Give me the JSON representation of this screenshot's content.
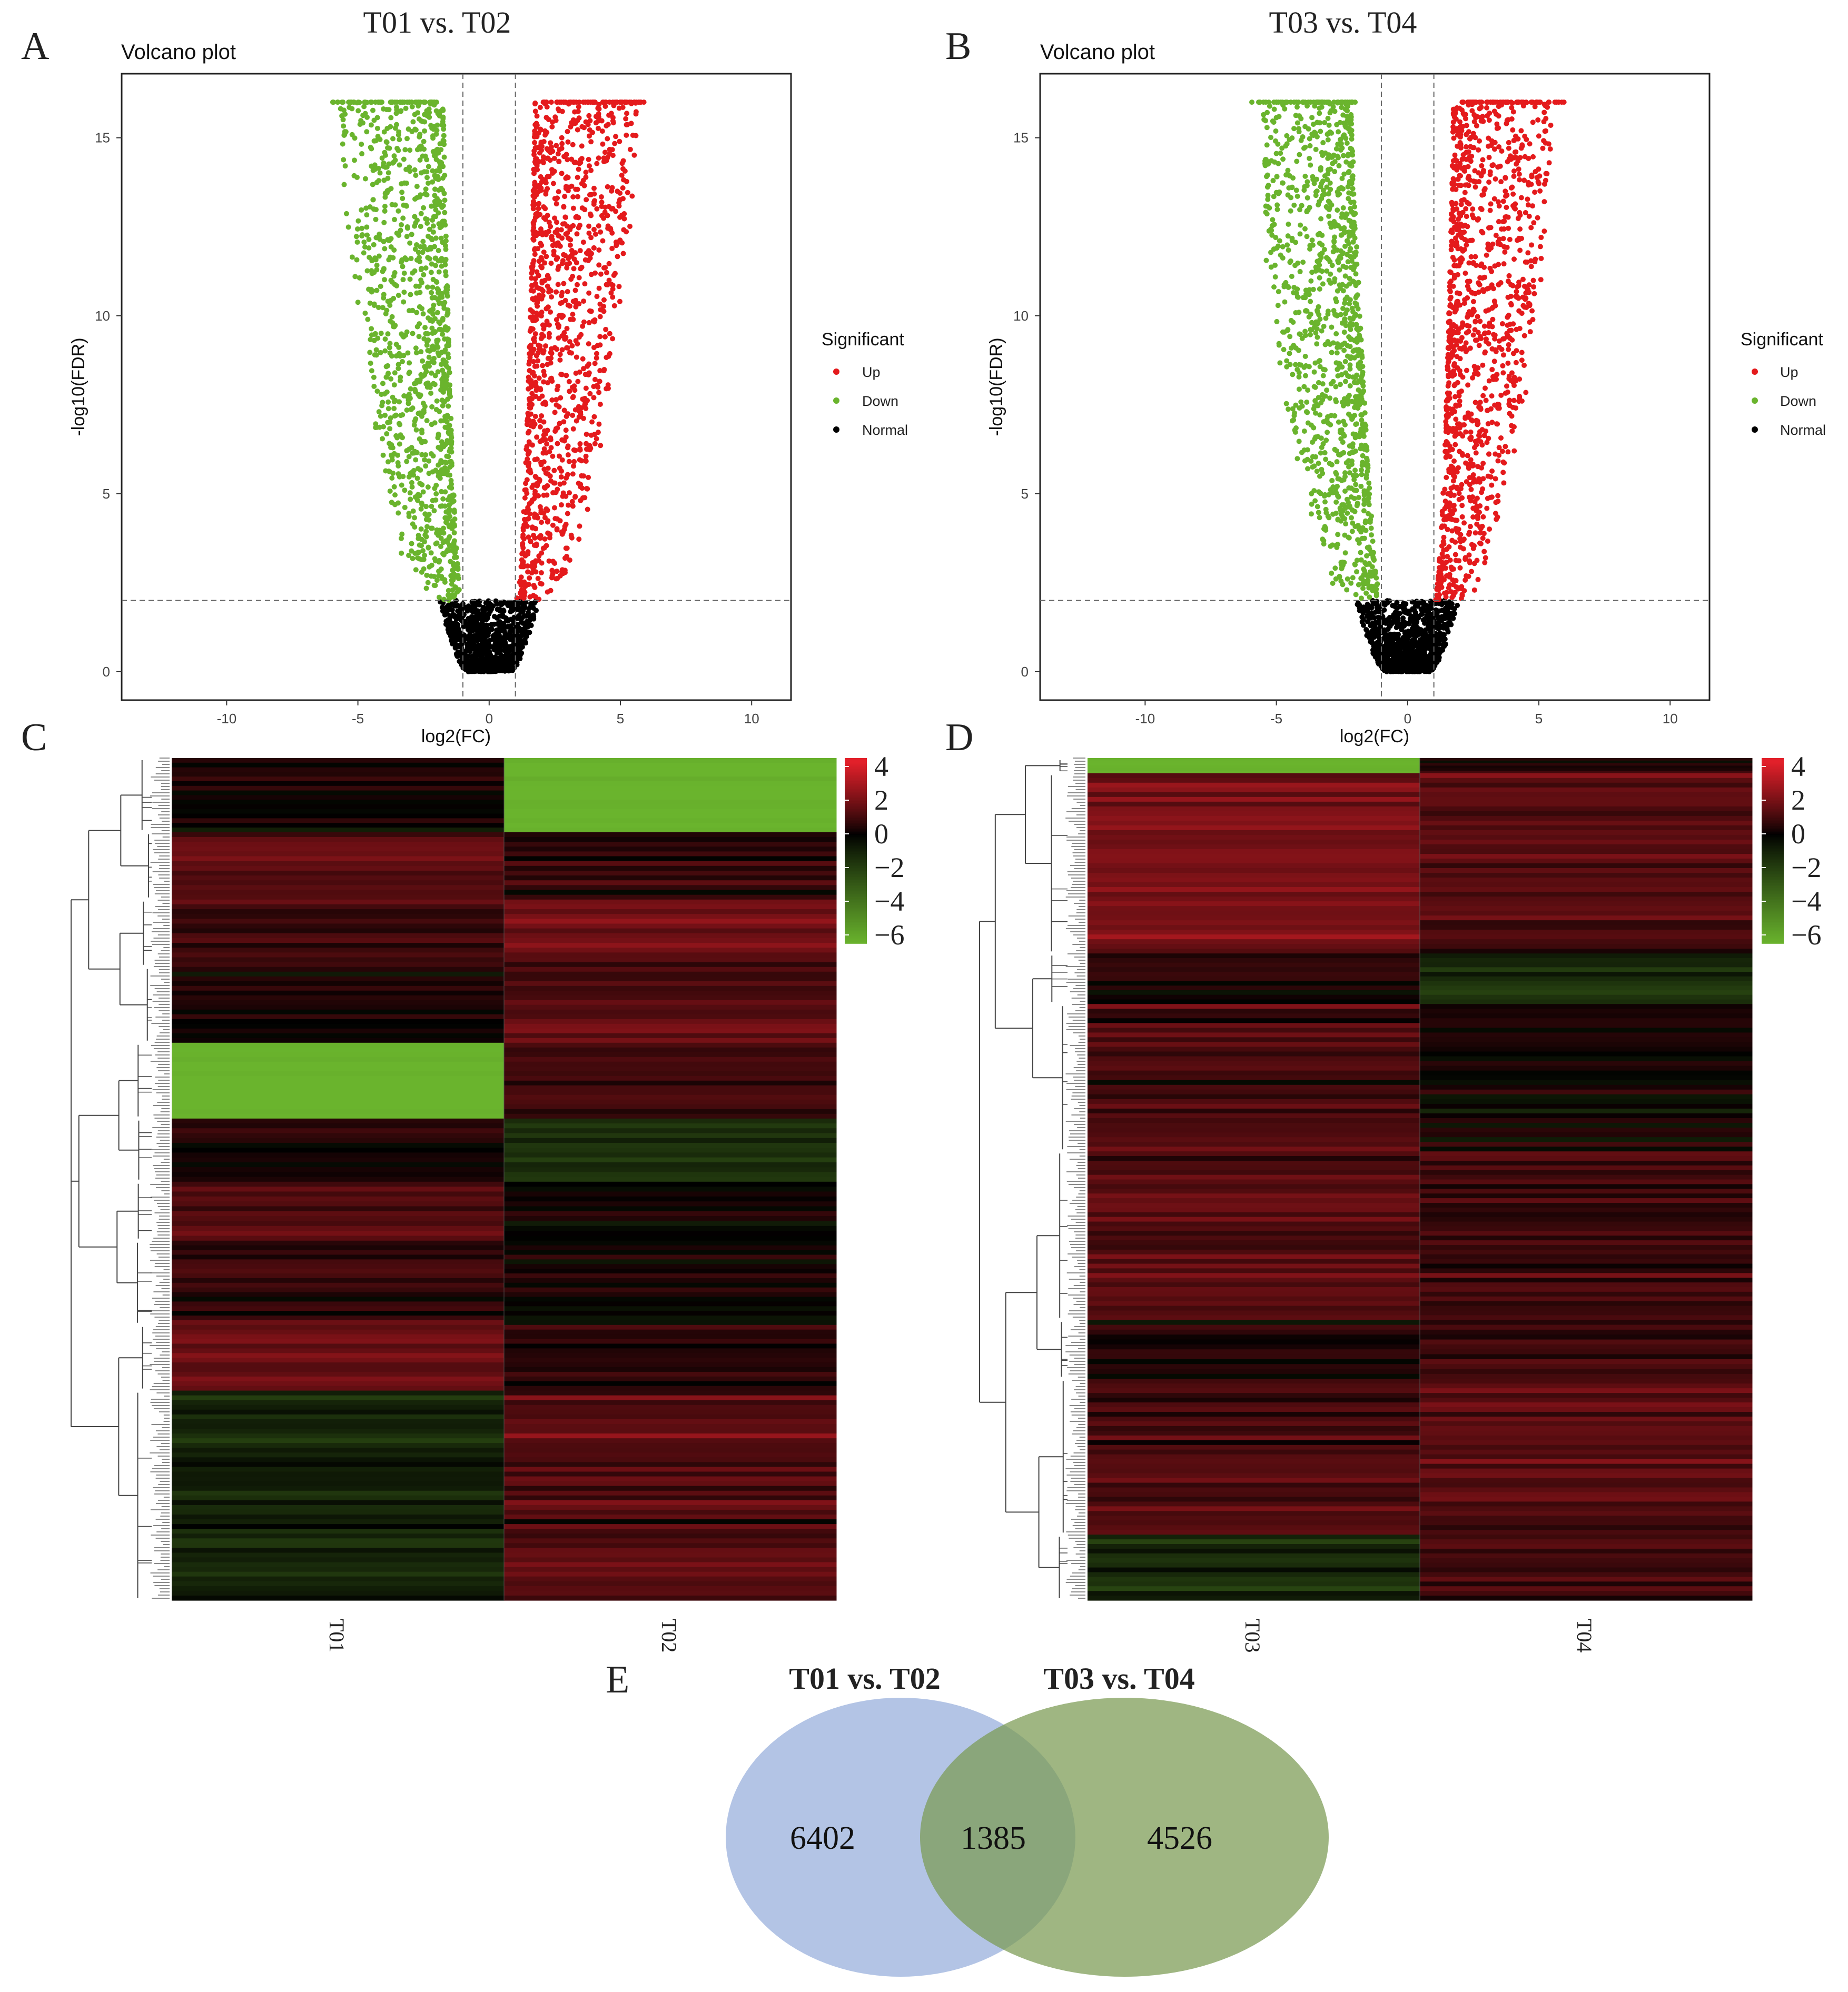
{
  "figure": {
    "panels": {
      "A": {
        "letter": "A",
        "header": "T01 vs. T02"
      },
      "B": {
        "letter": "B",
        "header": "T03 vs. T04"
      },
      "C": {
        "letter": "C"
      },
      "D": {
        "letter": "D"
      },
      "E": {
        "letter": "E"
      }
    }
  },
  "colors": {
    "up": "#e41a1c",
    "down": "#6ab42d",
    "normal": "#000000",
    "heat_high": "#e2202a",
    "heat_mid": "#000000",
    "heat_low": "#6ab42d",
    "venn_left": "#9db4de",
    "venn_right": "#7a9a52",
    "venn_overlap": "#6b9460"
  },
  "chart_data": [
    {
      "id": "A",
      "type": "scatter",
      "title": "Volcano plot",
      "xlabel": "log2(FC)",
      "ylabel": "-log10(FDR)",
      "xlim": [
        -14,
        11.5
      ],
      "ylim": [
        -0.8,
        16.8
      ],
      "xticks": [
        -10,
        -5,
        0,
        5,
        10
      ],
      "yticks": [
        0,
        5,
        10,
        15
      ],
      "fc_threshold": [
        -1,
        1
      ],
      "fdr_threshold": 2,
      "legend": {
        "title": "Significant",
        "placement": "right",
        "entries": [
          "Up",
          "Down",
          "Normal"
        ]
      },
      "series": [
        {
          "name": "Up",
          "x_range": [
            1,
            6
          ],
          "y_range": [
            2,
            16
          ],
          "approx_count": 3400
        },
        {
          "name": "Down",
          "x_range": [
            -6,
            -1
          ],
          "y_range": [
            2,
            16
          ],
          "approx_count": 3000
        },
        {
          "name": "Normal",
          "x_range": [
            -2,
            2
          ],
          "y_range": [
            0,
            2
          ],
          "approx_count": 2500
        }
      ]
    },
    {
      "id": "B",
      "type": "scatter",
      "title": "Volcano plot",
      "xlabel": "log2(FC)",
      "ylabel": "-log10(FDR)",
      "xlim": [
        -14,
        11.5
      ],
      "ylim": [
        -0.8,
        16.8
      ],
      "xticks": [
        -10,
        -5,
        0,
        5,
        10
      ],
      "yticks": [
        0,
        5,
        10,
        15
      ],
      "fc_threshold": [
        -1,
        1
      ],
      "fdr_threshold": 2,
      "legend": {
        "title": "Significant",
        "placement": "right",
        "entries": [
          "Up",
          "Down",
          "Normal"
        ]
      },
      "series": [
        {
          "name": "Up",
          "x_range": [
            1,
            5.5
          ],
          "y_range": [
            2,
            16
          ],
          "approx_count": 2400
        },
        {
          "name": "Down",
          "x_range": [
            -5.5,
            -1
          ],
          "y_range": [
            2,
            16
          ],
          "approx_count": 3500
        },
        {
          "name": "Normal",
          "x_range": [
            -2.2,
            2.2
          ],
          "y_range": [
            0,
            2
          ],
          "approx_count": 2500
        }
      ]
    },
    {
      "id": "C",
      "type": "heatmap",
      "columns": [
        "T01",
        "T02"
      ],
      "colorbar": {
        "ticks": [
          4,
          2,
          0,
          -2,
          -4,
          -6
        ],
        "range": [
          -6.5,
          4.5
        ]
      },
      "blocks": [
        {
          "h": 0.088,
          "values": [
            0.2,
            -6.5
          ]
        },
        {
          "h": 0.08,
          "values": [
            1.6,
            0.6
          ]
        },
        {
          "h": 0.08,
          "values": [
            0.8,
            1.8
          ]
        },
        {
          "h": 0.09,
          "values": [
            0.3,
            1.6
          ]
        },
        {
          "h": 0.09,
          "values": [
            -6.5,
            0.8
          ]
        },
        {
          "h": 0.075,
          "values": [
            0.5,
            -1.5
          ]
        },
        {
          "h": 0.07,
          "values": [
            1.2,
            0.0
          ]
        },
        {
          "h": 0.1,
          "values": [
            0.9,
            0.3
          ]
        },
        {
          "h": 0.078,
          "values": [
            1.6,
            0.6
          ]
        },
        {
          "h": 0.249,
          "values": [
            -1.0,
            1.4
          ]
        }
      ]
    },
    {
      "id": "D",
      "type": "heatmap",
      "columns": [
        "T03",
        "T04"
      ],
      "colorbar": {
        "ticks": [
          4,
          2,
          0,
          -2,
          -4,
          -6
        ],
        "range": [
          -6.5,
          4.5
        ]
      },
      "blocks": [
        {
          "h": 0.018,
          "values": [
            -6.5,
            0.3
          ]
        },
        {
          "h": 0.214,
          "values": [
            2.0,
            1.4
          ]
        },
        {
          "h": 0.06,
          "values": [
            0.3,
            -1.3
          ]
        },
        {
          "h": 0.175,
          "values": [
            1.0,
            0.2
          ]
        },
        {
          "h": 0.2,
          "values": [
            1.5,
            0.8
          ]
        },
        {
          "h": 0.07,
          "values": [
            0.2,
            1.0
          ]
        },
        {
          "h": 0.185,
          "values": [
            1.2,
            1.4
          ]
        },
        {
          "h": 0.078,
          "values": [
            -1.4,
            0.9
          ]
        }
      ]
    },
    {
      "id": "E",
      "type": "venn",
      "sets": [
        {
          "name": "T01 vs. T02",
          "only": "6402"
        },
        {
          "name": "T03 vs. T04",
          "only": "4526"
        }
      ],
      "overlap": "1385"
    }
  ]
}
